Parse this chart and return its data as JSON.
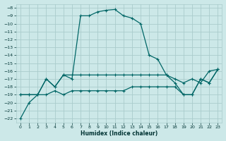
{
  "title": "",
  "xlabel": "Humidex (Indice chaleur)",
  "bg_color": "#cce8e8",
  "grid_color": "#aacccc",
  "line_color": "#006666",
  "xlim": [
    -0.5,
    23.5
  ],
  "ylim": [
    -22.5,
    -7.5
  ],
  "xticks": [
    0,
    1,
    2,
    3,
    4,
    5,
    6,
    7,
    8,
    9,
    10,
    11,
    12,
    13,
    14,
    15,
    16,
    17,
    18,
    19,
    20,
    21,
    22,
    23
  ],
  "yticks": [
    -22,
    -21,
    -20,
    -19,
    -18,
    -17,
    -16,
    -15,
    -14,
    -13,
    -12,
    -11,
    -10,
    -9,
    -8
  ],
  "line1_x": [
    0,
    1,
    2,
    3,
    4,
    5,
    6,
    7,
    8,
    9,
    10,
    11,
    12,
    13,
    14,
    15,
    16,
    17,
    18,
    19,
    20,
    21,
    22,
    23
  ],
  "line1_y": [
    -22,
    -20,
    -19,
    -17,
    -18,
    -16.5,
    -17,
    -9,
    -9,
    -8.5,
    -8.3,
    -8.2,
    -9,
    -9.3,
    -10,
    -14,
    -14.5,
    -16.5,
    -17,
    -17.5,
    -17,
    -17.5,
    -16,
    -15.8
  ],
  "line2_x": [
    0,
    1,
    2,
    3,
    4,
    5,
    6,
    7,
    8,
    9,
    10,
    11,
    12,
    13,
    14,
    15,
    16,
    17,
    18,
    19,
    20,
    21,
    22,
    23
  ],
  "line2_y": [
    -19,
    -19,
    -19,
    -17,
    -18,
    -16.5,
    -16.5,
    -16.5,
    -16.5,
    -16.5,
    -16.5,
    -16.5,
    -16.5,
    -16.5,
    -16.5,
    -16.5,
    -16.5,
    -16.5,
    -17.5,
    -19,
    -19,
    -17,
    -17.5,
    -15.8
  ],
  "line3_x": [
    0,
    1,
    2,
    3,
    4,
    5,
    6,
    7,
    8,
    9,
    10,
    11,
    12,
    13,
    14,
    15,
    16,
    17,
    18,
    19,
    20,
    21,
    22,
    23
  ],
  "line3_y": [
    -19,
    -19,
    -19,
    -19,
    -18.5,
    -19,
    -18.5,
    -18.5,
    -18.5,
    -18.5,
    -18.5,
    -18.5,
    -18.5,
    -18,
    -18,
    -18,
    -18,
    -18,
    -18,
    -19,
    -19,
    -17,
    -17.5,
    -15.8
  ]
}
